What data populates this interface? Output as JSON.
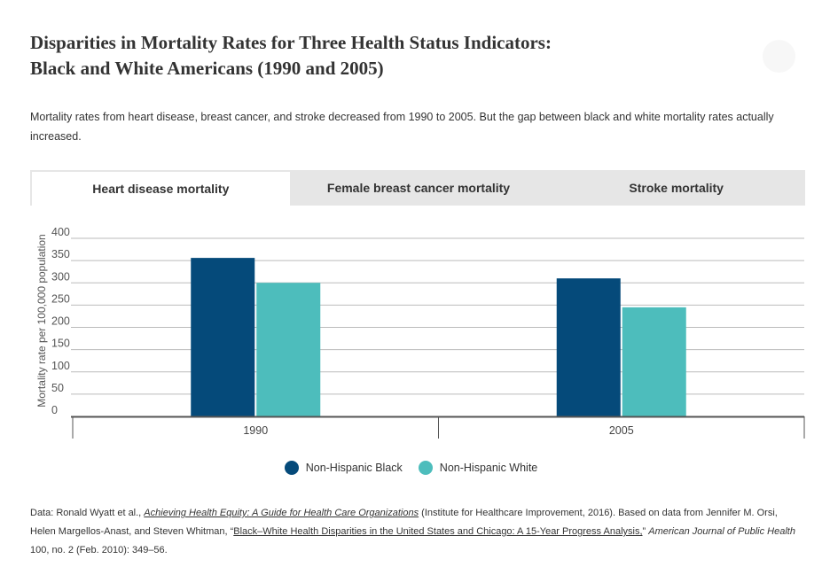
{
  "title_line1": "Disparities in Mortality Rates for Three Health Status Indicators:",
  "title_line2": "Black and White Americans (1990 and 2005)",
  "description": "Mortality rates from heart disease, breast cancer, and stroke decreased from 1990 to 2005. But the gap between black and white mortality rates actually increased.",
  "tabs": [
    {
      "label": "Heart disease mortality",
      "active": true
    },
    {
      "label": "Female breast cancer mortality",
      "active": false
    },
    {
      "label": "Stroke mortality",
      "active": false
    }
  ],
  "chart_data": {
    "type": "bar",
    "categories": [
      "1990",
      "2005"
    ],
    "series": [
      {
        "name": "Non-Hispanic Black",
        "values": [
          356,
          310
        ],
        "color": "#054a7a"
      },
      {
        "name": "Non-Hispanic White",
        "values": [
          300,
          245
        ],
        "color": "#4dbdbc"
      }
    ],
    "ylabel": "Mortality rate per 100,000 population",
    "xlabel": "",
    "ylim": [
      0,
      400
    ],
    "yticks": [
      "0",
      "50",
      "100",
      "150",
      "200",
      "250",
      "300",
      "350",
      "400"
    ],
    "grid": true,
    "legend": "bottom"
  },
  "source": {
    "prefix": "Data: Ronald Wyatt et al., ",
    "book": "Achieving Health Equity: A Guide for Health Care Organizations",
    "mid1": " (Institute for Healthcare Improvement, 2016). Based on data from Jennifer M. Orsi, Helen Margellos-Anast, and Steven Whitman, “",
    "article": "Black–White Health Disparities in the United States and Chicago: A 15-Year Progress Analysis,",
    "mid2": "” ",
    "journal": "American Journal of Public Health",
    "suffix": " 100, no. 2 (Feb. 2010): 349–56."
  }
}
